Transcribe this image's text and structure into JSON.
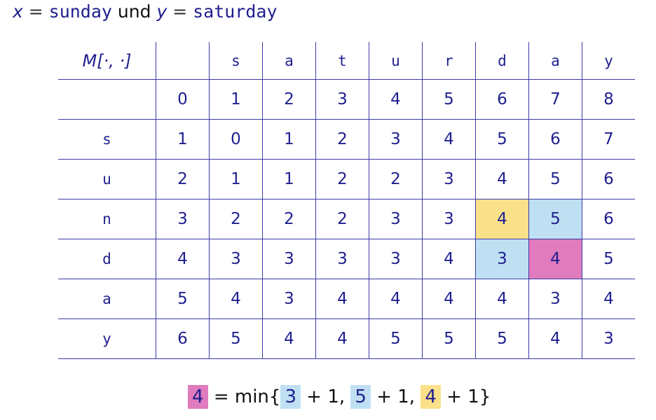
{
  "title": {
    "x_var": "x",
    "eq1": "=",
    "x_val": "sunday",
    "und": "und",
    "y_var": "y",
    "eq2": "=",
    "y_val": "saturday"
  },
  "colors": {
    "line": "#3b3ba6",
    "text": "#1f1f8f",
    "yellow": "#fbe08a",
    "blue": "#bfe0f3",
    "pink": "#e07bbd"
  },
  "table": {
    "corner": "M[·, ·]",
    "col_letters": [
      "",
      "s",
      "a",
      "t",
      "u",
      "r",
      "d",
      "a",
      "y"
    ],
    "col_indices": [
      "0",
      "1",
      "2",
      "3",
      "4",
      "5",
      "6",
      "7",
      "8"
    ],
    "rows": [
      {
        "letter": "s",
        "values": [
          "1",
          "0",
          "1",
          "2",
          "3",
          "4",
          "5",
          "6",
          "7"
        ]
      },
      {
        "letter": "u",
        "values": [
          "2",
          "1",
          "1",
          "2",
          "2",
          "3",
          "4",
          "5",
          "6"
        ]
      },
      {
        "letter": "n",
        "values": [
          "3",
          "2",
          "2",
          "2",
          "3",
          "3",
          "4",
          "5",
          "6"
        ]
      },
      {
        "letter": "d",
        "values": [
          "4",
          "3",
          "3",
          "3",
          "3",
          "4",
          "3",
          "4",
          "5"
        ]
      },
      {
        "letter": "a",
        "values": [
          "5",
          "4",
          "3",
          "4",
          "4",
          "4",
          "4",
          "3",
          "4"
        ]
      },
      {
        "letter": "y",
        "values": [
          "6",
          "5",
          "4",
          "4",
          "5",
          "5",
          "5",
          "4",
          "3"
        ]
      }
    ],
    "highlights": [
      {
        "row": 2,
        "col": 6,
        "color": "yellow"
      },
      {
        "row": 2,
        "col": 7,
        "color": "blue"
      },
      {
        "row": 3,
        "col": 6,
        "color": "blue"
      },
      {
        "row": 3,
        "col": 7,
        "color": "pink"
      }
    ]
  },
  "formula": {
    "result": "4",
    "eq": "=",
    "min": "min{",
    "a": "3",
    "a_rest": "+ 1,",
    "b": "5",
    "b_rest": "+ 1,",
    "c": "4",
    "c_rest": "+ 1}"
  }
}
